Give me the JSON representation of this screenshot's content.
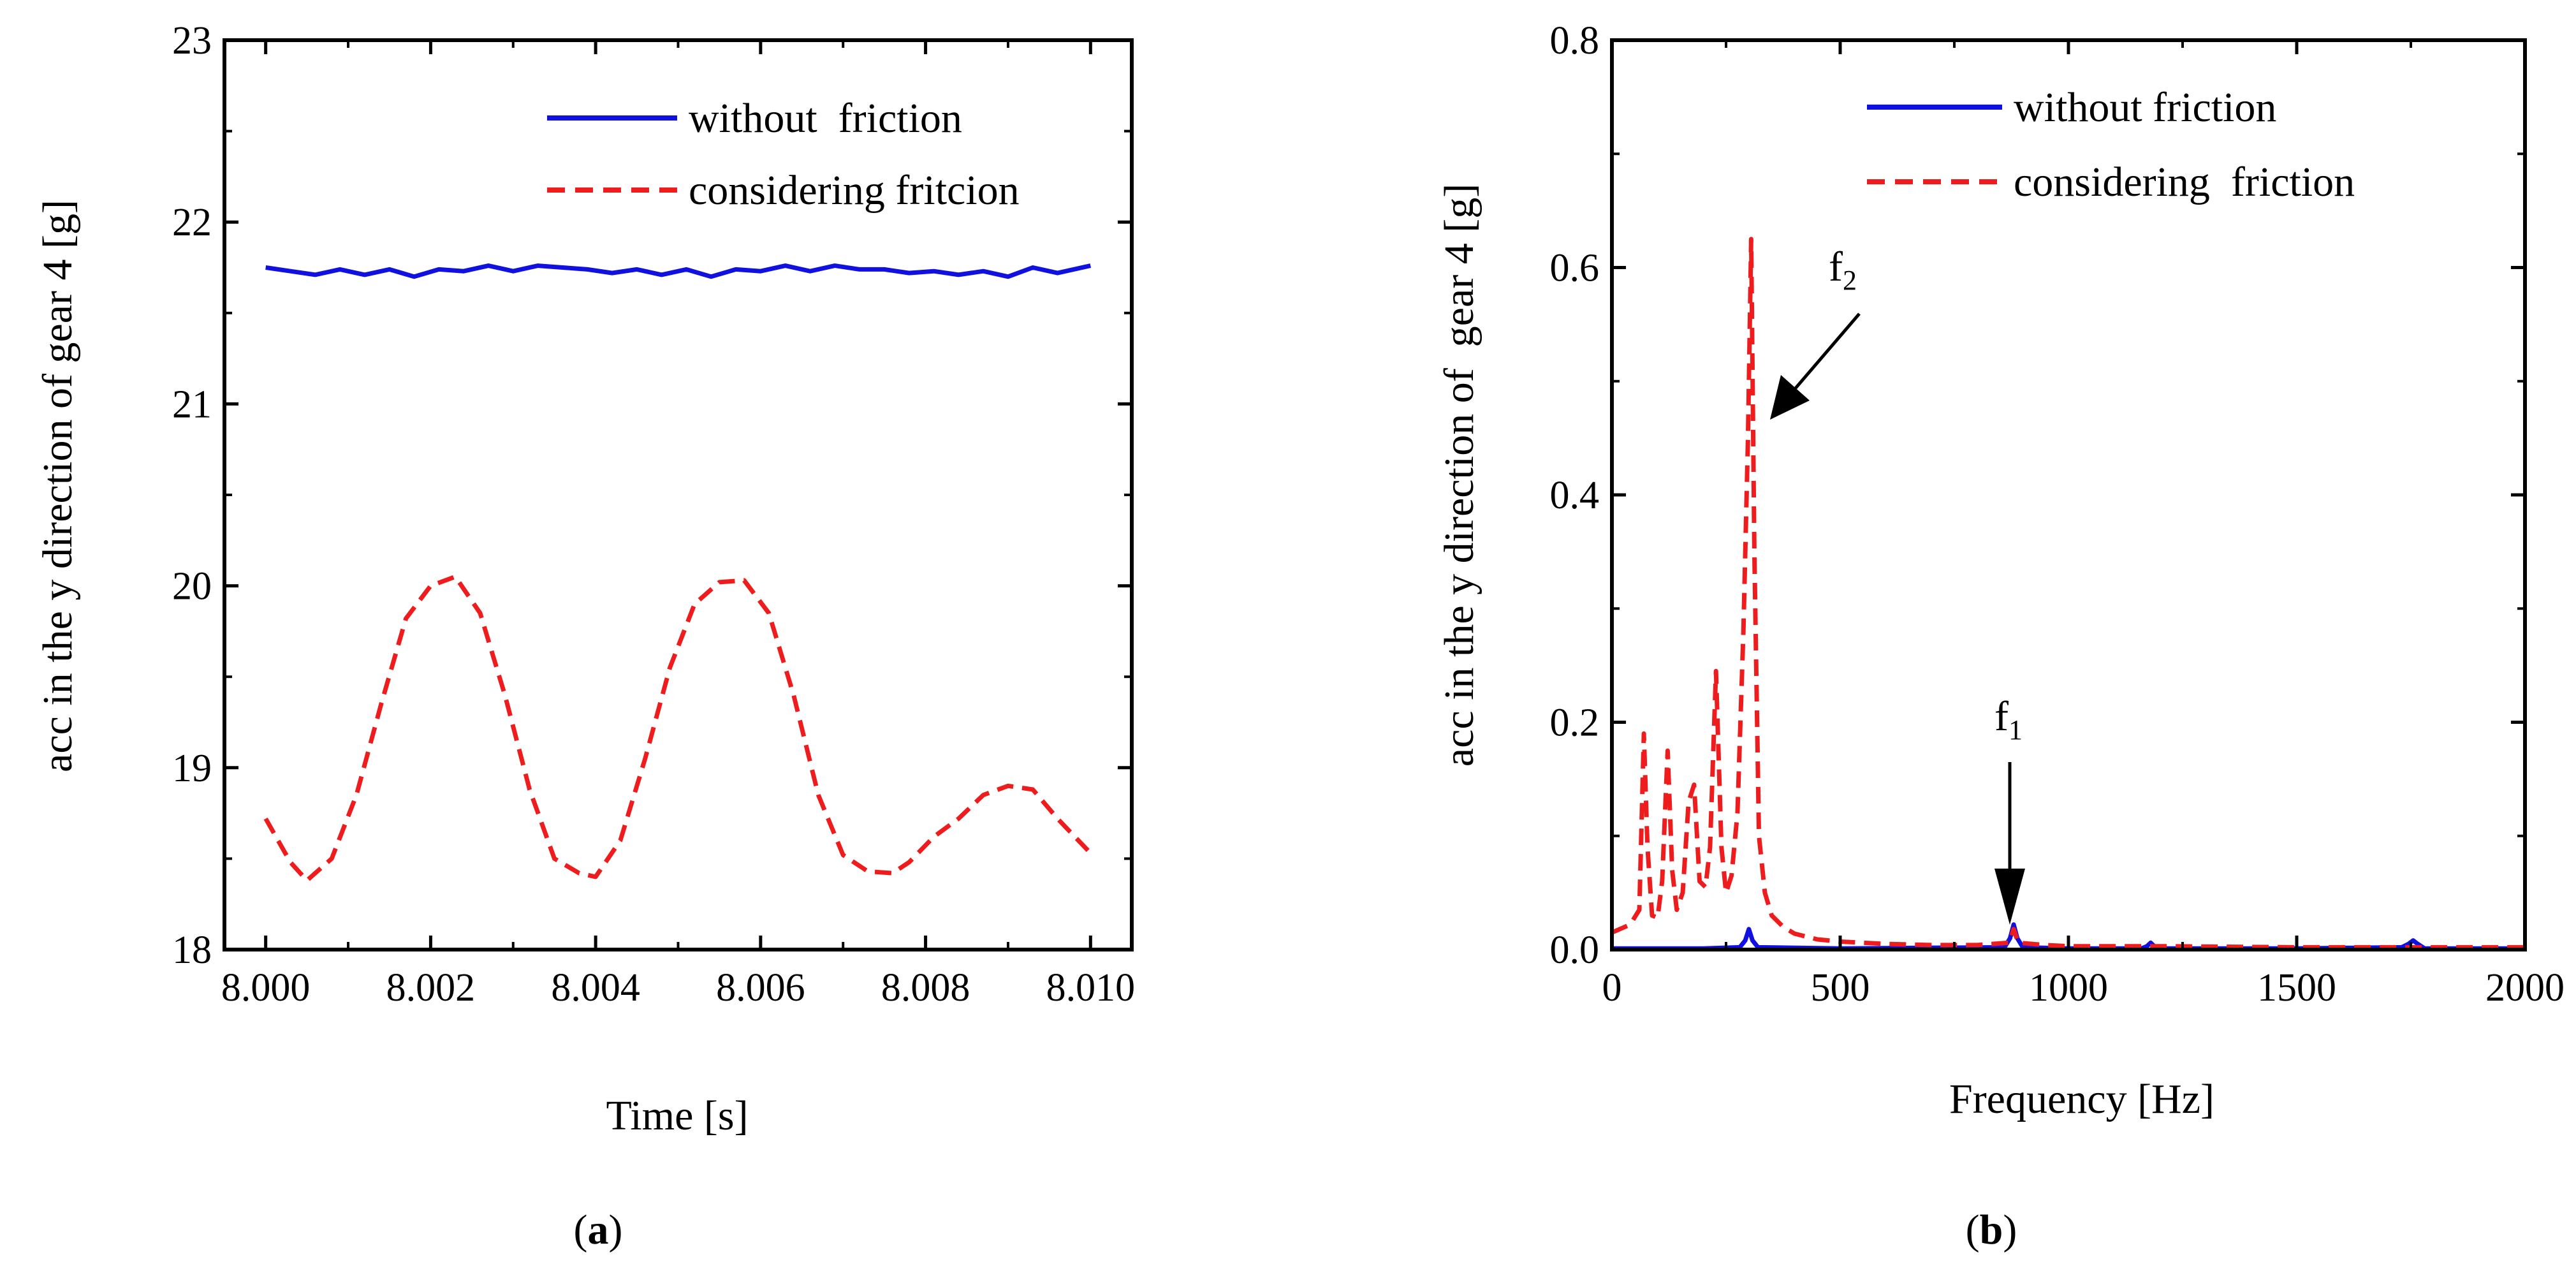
{
  "colors": {
    "without_friction": "#1010e0",
    "considering_friction": "#ee1c1c",
    "axis": "#000000",
    "background": "#ffffff"
  },
  "chart_data": [
    {
      "type": "line",
      "caption": {
        "open": "(",
        "letter": "a",
        "close": ")"
      },
      "xlabel": "Time [s]",
      "ylabel": "acc in the y direction of gear 4 [g]",
      "xlim": [
        7.9995,
        8.0105
      ],
      "ylim": [
        18,
        23
      ],
      "xticks": [
        8.0,
        8.002,
        8.004,
        8.006,
        8.008,
        8.01
      ],
      "xtick_labels": [
        "8.000",
        "8.002",
        "8.004",
        "8.006",
        "8.008",
        "8.010"
      ],
      "yticks": [
        18,
        19,
        20,
        21,
        22,
        23
      ],
      "ytick_labels": [
        "18",
        "19",
        "20",
        "21",
        "22",
        "23"
      ],
      "grid": false,
      "legend_position": "top-right",
      "series": [
        {
          "name": "without  friction",
          "style": "solid",
          "color": "#1010e0",
          "x": [
            8.0,
            8.0003,
            8.0006,
            8.0009,
            8.0012,
            8.0015,
            8.0018,
            8.0021,
            8.0024,
            8.0027,
            8.003,
            8.0033,
            8.0036,
            8.0039,
            8.0042,
            8.0045,
            8.0048,
            8.0051,
            8.0054,
            8.0057,
            8.006,
            8.0063,
            8.0066,
            8.0069,
            8.0072,
            8.0075,
            8.0078,
            8.0081,
            8.0084,
            8.0087,
            8.009,
            8.0093,
            8.0096,
            8.01
          ],
          "y": [
            21.75,
            21.73,
            21.71,
            21.74,
            21.71,
            21.74,
            21.7,
            21.74,
            21.73,
            21.76,
            21.73,
            21.76,
            21.75,
            21.74,
            21.72,
            21.74,
            21.71,
            21.74,
            21.7,
            21.74,
            21.73,
            21.76,
            21.73,
            21.76,
            21.74,
            21.74,
            21.72,
            21.73,
            21.71,
            21.73,
            21.7,
            21.75,
            21.72,
            21.76
          ]
        },
        {
          "name": "considering fritcion",
          "style": "dashed",
          "color": "#ee1c1c",
          "x": [
            8.0,
            8.0003,
            8.0005,
            8.0008,
            8.0011,
            8.0014,
            8.0017,
            8.002,
            8.0023,
            8.0026,
            8.0029,
            8.0032,
            8.0035,
            8.0038,
            8.004,
            8.0043,
            8.0046,
            8.0049,
            8.0052,
            8.0055,
            8.0058,
            8.0061,
            8.0064,
            8.0067,
            8.007,
            8.0073,
            8.0076,
            8.0078,
            8.0081,
            8.0084,
            8.0087,
            8.009,
            8.0093,
            8.0096,
            8.01
          ],
          "y": [
            18.72,
            18.48,
            18.38,
            18.5,
            18.85,
            19.35,
            19.82,
            20.0,
            20.05,
            19.85,
            19.4,
            18.88,
            18.5,
            18.42,
            18.4,
            18.6,
            19.05,
            19.55,
            19.9,
            20.02,
            20.03,
            19.85,
            19.4,
            18.85,
            18.52,
            18.43,
            18.42,
            18.48,
            18.62,
            18.72,
            18.85,
            18.9,
            18.88,
            18.72,
            18.53
          ]
        }
      ]
    },
    {
      "type": "line",
      "caption": {
        "open": "(",
        "letter": "b",
        "close": ")"
      },
      "xlabel": "Frequency [Hz]",
      "ylabel": "acc in the y direction of  gear 4 [g]",
      "xlim": [
        0,
        2000
      ],
      "ylim": [
        0,
        0.8
      ],
      "xticks": [
        0,
        500,
        1000,
        1500,
        2000
      ],
      "xtick_labels": [
        "0",
        "500",
        "1000",
        "1500",
        "2000"
      ],
      "yticks": [
        0,
        0.2,
        0.4,
        0.6,
        0.8
      ],
      "ytick_labels": [
        "0.0",
        "0.2",
        "0.4",
        "0.6",
        "0.8"
      ],
      "grid": false,
      "legend_position": "top-right",
      "annotations": [
        {
          "text": "f",
          "sub": "2",
          "x": 305,
          "y": 0.625
        },
        {
          "text": "f",
          "sub": "1",
          "x": 880,
          "y": 0.02
        }
      ],
      "series": [
        {
          "name": "without friction",
          "style": "solid",
          "color": "#1010e0",
          "x": [
            0,
            200,
            280,
            292,
            300,
            308,
            320,
            500,
            860,
            872,
            880,
            888,
            900,
            1000,
            1160,
            1172,
            1180,
            1188,
            1200,
            1500,
            1730,
            1745,
            1755,
            1765,
            1780,
            2000
          ],
          "y": [
            0.001,
            0.001,
            0.002,
            0.008,
            0.018,
            0.008,
            0.002,
            0.001,
            0.002,
            0.01,
            0.022,
            0.01,
            0.002,
            0.001,
            0.001,
            0.003,
            0.006,
            0.003,
            0.001,
            0.001,
            0.002,
            0.005,
            0.008,
            0.005,
            0.001,
            0.001
          ]
        },
        {
          "name": "considering  friction",
          "style": "dashed",
          "color": "#ee1c1c",
          "x": [
            0,
            40,
            60,
            70,
            78,
            88,
            100,
            110,
            122,
            132,
            142,
            155,
            168,
            180,
            192,
            205,
            215,
            228,
            240,
            250,
            262,
            275,
            288,
            298,
            305,
            312,
            322,
            335,
            350,
            375,
            400,
            450,
            500,
            600,
            700,
            800,
            870,
            880,
            890,
            950,
            1000,
            1200,
            1500,
            1800,
            2000
          ],
          "y": [
            0.015,
            0.022,
            0.035,
            0.19,
            0.09,
            0.03,
            0.028,
            0.06,
            0.175,
            0.07,
            0.035,
            0.05,
            0.13,
            0.145,
            0.06,
            0.055,
            0.09,
            0.245,
            0.09,
            0.05,
            0.065,
            0.12,
            0.28,
            0.45,
            0.625,
            0.35,
            0.1,
            0.05,
            0.03,
            0.02,
            0.014,
            0.009,
            0.007,
            0.005,
            0.004,
            0.004,
            0.006,
            0.018,
            0.006,
            0.004,
            0.003,
            0.003,
            0.002,
            0.002,
            0.002
          ]
        }
      ]
    }
  ]
}
